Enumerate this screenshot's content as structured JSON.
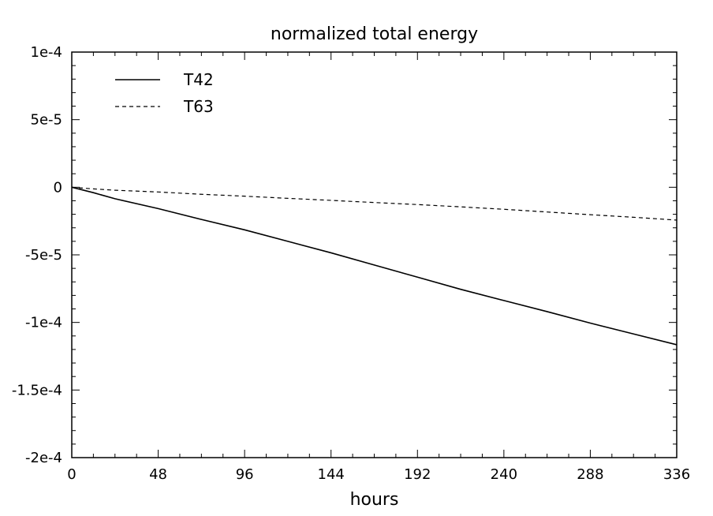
{
  "chart_data": {
    "type": "line",
    "title": "normalized total energy",
    "xlabel": "hours",
    "ylabel": "",
    "xlim": [
      0,
      336
    ],
    "ylim": [
      -0.0002,
      0.0001
    ],
    "grid": false,
    "legend_position": "top-left",
    "x_ticks": [
      0,
      48,
      96,
      144,
      192,
      240,
      288,
      336
    ],
    "x_tick_labels": [
      "0",
      "48",
      "96",
      "144",
      "192",
      "240",
      "288",
      "336"
    ],
    "y_ticks": [
      0.0001,
      5e-05,
      0,
      -5e-05,
      -0.0001,
      -0.00015,
      -0.0002
    ],
    "y_tick_labels": [
      "1e-4",
      "5e-5",
      "0",
      "-5e-5",
      "-1e-4",
      "-1.5e-4",
      "-2e-4"
    ],
    "x": [
      0,
      12,
      24,
      48,
      72,
      96,
      120,
      144,
      168,
      192,
      216,
      240,
      264,
      288,
      312,
      336
    ],
    "series": [
      {
        "name": "T42",
        "line_style": "solid",
        "values": [
          0,
          -4e-06,
          -8.5e-06,
          -1.58e-05,
          -2.38e-05,
          -3.15e-05,
          -4e-05,
          -4.85e-05,
          -5.75e-05,
          -6.65e-05,
          -7.55e-05,
          -8.38e-05,
          -9.2e-05,
          -0.0001005,
          -0.0001085,
          -0.0001165
        ]
      },
      {
        "name": "T63",
        "line_style": "dashed",
        "values": [
          0,
          -1.2e-06,
          -2.2e-06,
          -3.5e-06,
          -5.2e-06,
          -6.6e-06,
          -8.2e-06,
          -9.7e-06,
          -1.13e-05,
          -1.28e-05,
          -1.45e-05,
          -1.63e-05,
          -1.83e-05,
          -2.03e-05,
          -2.22e-05,
          -2.43e-05
        ]
      }
    ]
  }
}
